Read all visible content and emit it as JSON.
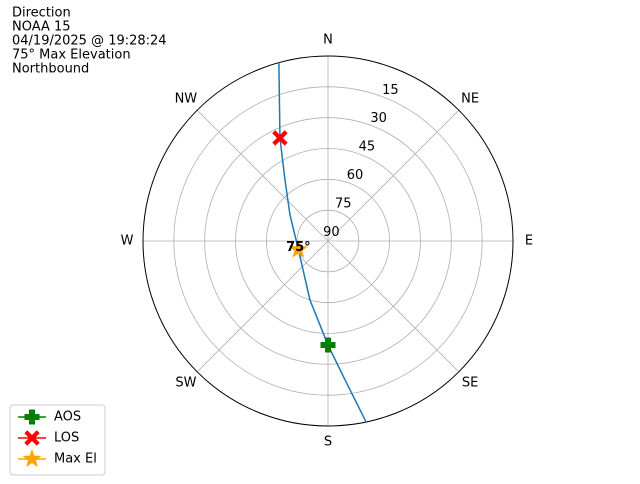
{
  "chart_data": {
    "type": "polar",
    "title": [
      "Direction",
      "NOAA 15",
      "04/19/2025 @ 19:28:24",
      "75° Max Elevation",
      "Northbound"
    ],
    "theta_zero": "N",
    "theta_direction": "clockwise",
    "xticks": [
      {
        "value": 0,
        "label": "N"
      },
      {
        "value": 45,
        "label": "NE"
      },
      {
        "value": 90,
        "label": "E"
      },
      {
        "value": 135,
        "label": "SE"
      },
      {
        "value": 180,
        "label": "S"
      },
      {
        "value": 225,
        "label": "SW"
      },
      {
        "value": 270,
        "label": "W"
      },
      {
        "value": 315,
        "label": "NW"
      }
    ],
    "ylim": [
      90,
      0
    ],
    "yticks": [
      15,
      30,
      45,
      60,
      75,
      90
    ],
    "grid": true,
    "legend": "lower left",
    "series": [
      {
        "color": "#1f77b4",
        "marker": "none",
        "x": [
          344.6,
          335,
          324.8,
          304.4,
          254,
          197,
          180,
          173,
          168.1
        ],
        "values": [
          0,
          34.7,
          53.7,
          67.6,
          75,
          60,
          39.4,
          21.9,
          0
        ]
      },
      {
        "name": "AOS",
        "color": "green",
        "marker": "plus",
        "x": [
          180
        ],
        "values": [
          39.4
        ]
      },
      {
        "name": "LOS",
        "color": "red",
        "marker": "x",
        "x": [
          335
        ],
        "values": [
          34.7
        ]
      },
      {
        "name": "Max El",
        "color": "orange",
        "marker": "star",
        "x": [
          254
        ],
        "values": [
          75
        ],
        "value_labels": [
          "75°"
        ]
      }
    ]
  }
}
